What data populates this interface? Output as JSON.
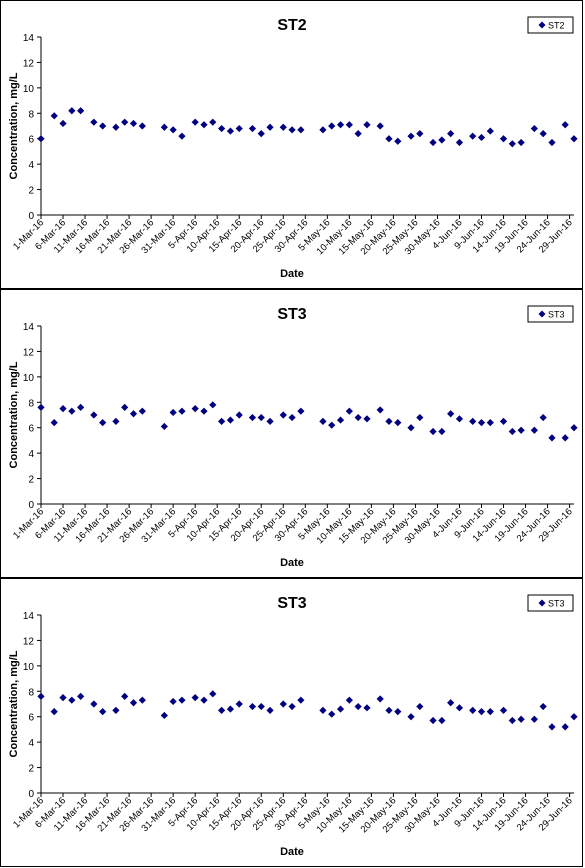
{
  "chart_data": [
    {
      "type": "scatter",
      "title": "ST2",
      "xlabel": "Date",
      "ylabel": "Concentration, mg/L",
      "ylim": [
        0,
        14
      ],
      "yticks": [
        "0",
        "2",
        "4",
        "6",
        "8",
        "10",
        "12",
        "14"
      ],
      "xlim": [
        "2016-03-01",
        "2016-06-30"
      ],
      "xticks": [
        "1-Mar-16",
        "6-Mar-16",
        "11-Mar-16",
        "16-Mar-16",
        "21-Mar-16",
        "26-Mar-16",
        "31-Mar-16",
        "5-Apr-16",
        "10-Apr-16",
        "15-Apr-16",
        "20-Apr-16",
        "25-Apr-16",
        "30-Apr-16",
        "5-May-16",
        "10-May-16",
        "15-May-16",
        "20-May-16",
        "25-May-16",
        "30-May-16",
        "4-Jun-16",
        "9-Jun-16",
        "14-Jun-16",
        "19-Jun-16",
        "24-Jun-16",
        "29-Jun-16"
      ],
      "grid": false,
      "legend_position": "top-right",
      "marker_color": "#000080",
      "series": [
        {
          "name": "ST2",
          "points": [
            [
              "2016-03-01",
              6.0
            ],
            [
              "2016-03-04",
              7.8
            ],
            [
              "2016-03-06",
              7.2
            ],
            [
              "2016-03-08",
              8.2
            ],
            [
              "2016-03-10",
              8.2
            ],
            [
              "2016-03-13",
              7.3
            ],
            [
              "2016-03-15",
              7.0
            ],
            [
              "2016-03-18",
              6.9
            ],
            [
              "2016-03-20",
              7.3
            ],
            [
              "2016-03-22",
              7.2
            ],
            [
              "2016-03-24",
              7.0
            ],
            [
              "2016-03-29",
              6.9
            ],
            [
              "2016-03-31",
              6.7
            ],
            [
              "2016-04-02",
              6.2
            ],
            [
              "2016-04-05",
              7.3
            ],
            [
              "2016-04-07",
              7.1
            ],
            [
              "2016-04-09",
              7.3
            ],
            [
              "2016-04-11",
              6.8
            ],
            [
              "2016-04-13",
              6.6
            ],
            [
              "2016-04-15",
              6.8
            ],
            [
              "2016-04-18",
              6.8
            ],
            [
              "2016-04-20",
              6.4
            ],
            [
              "2016-04-22",
              6.9
            ],
            [
              "2016-04-25",
              6.9
            ],
            [
              "2016-04-27",
              6.7
            ],
            [
              "2016-04-29",
              6.7
            ],
            [
              "2016-05-04",
              6.7
            ],
            [
              "2016-05-06",
              7.0
            ],
            [
              "2016-05-08",
              7.1
            ],
            [
              "2016-05-10",
              7.1
            ],
            [
              "2016-05-12",
              6.4
            ],
            [
              "2016-05-14",
              7.1
            ],
            [
              "2016-05-17",
              7.0
            ],
            [
              "2016-05-19",
              6.0
            ],
            [
              "2016-05-21",
              5.8
            ],
            [
              "2016-05-24",
              6.2
            ],
            [
              "2016-05-26",
              6.4
            ],
            [
              "2016-05-29",
              5.7
            ],
            [
              "2016-05-31",
              5.9
            ],
            [
              "2016-06-02",
              6.4
            ],
            [
              "2016-06-04",
              5.7
            ],
            [
              "2016-06-07",
              6.2
            ],
            [
              "2016-06-09",
              6.1
            ],
            [
              "2016-06-11",
              6.6
            ],
            [
              "2016-06-14",
              6.0
            ],
            [
              "2016-06-16",
              5.6
            ],
            [
              "2016-06-18",
              5.7
            ],
            [
              "2016-06-21",
              6.8
            ],
            [
              "2016-06-23",
              6.4
            ],
            [
              "2016-06-25",
              5.7
            ],
            [
              "2016-06-28",
              7.1
            ],
            [
              "2016-06-30",
              6.0
            ]
          ]
        }
      ]
    },
    {
      "type": "scatter",
      "title": "ST3",
      "xlabel": "Date",
      "ylabel": "Concentration, mg/L",
      "ylim": [
        0,
        14
      ],
      "yticks": [
        "0",
        "2",
        "4",
        "6",
        "8",
        "10",
        "12",
        "14"
      ],
      "xlim": [
        "2016-03-01",
        "2016-06-30"
      ],
      "xticks": [
        "1-Mar-16",
        "6-Mar-16",
        "11-Mar-16",
        "16-Mar-16",
        "21-Mar-16",
        "26-Mar-16",
        "31-Mar-16",
        "5-Apr-16",
        "10-Apr-16",
        "15-Apr-16",
        "20-Apr-16",
        "25-Apr-16",
        "30-Apr-16",
        "5-May-16",
        "10-May-16",
        "15-May-16",
        "20-May-16",
        "25-May-16",
        "30-May-16",
        "4-Jun-16",
        "9-Jun-16",
        "14-Jun-16",
        "19-Jun-16",
        "24-Jun-16",
        "29-Jun-16"
      ],
      "grid": false,
      "legend_position": "top-right",
      "marker_color": "#000080",
      "series": [
        {
          "name": "ST3",
          "points": [
            [
              "2016-03-01",
              7.6
            ],
            [
              "2016-03-04",
              6.4
            ],
            [
              "2016-03-06",
              7.5
            ],
            [
              "2016-03-08",
              7.3
            ],
            [
              "2016-03-10",
              7.6
            ],
            [
              "2016-03-13",
              7.0
            ],
            [
              "2016-03-15",
              6.4
            ],
            [
              "2016-03-18",
              6.5
            ],
            [
              "2016-03-20",
              7.6
            ],
            [
              "2016-03-22",
              7.1
            ],
            [
              "2016-03-24",
              7.3
            ],
            [
              "2016-03-29",
              6.1
            ],
            [
              "2016-03-31",
              7.2
            ],
            [
              "2016-04-02",
              7.3
            ],
            [
              "2016-04-05",
              7.5
            ],
            [
              "2016-04-07",
              7.3
            ],
            [
              "2016-04-09",
              7.8
            ],
            [
              "2016-04-11",
              6.5
            ],
            [
              "2016-04-13",
              6.6
            ],
            [
              "2016-04-15",
              7.0
            ],
            [
              "2016-04-18",
              6.8
            ],
            [
              "2016-04-20",
              6.8
            ],
            [
              "2016-04-22",
              6.5
            ],
            [
              "2016-04-25",
              7.0
            ],
            [
              "2016-04-27",
              6.8
            ],
            [
              "2016-04-29",
              7.3
            ],
            [
              "2016-05-04",
              6.5
            ],
            [
              "2016-05-06",
              6.2
            ],
            [
              "2016-05-08",
              6.6
            ],
            [
              "2016-05-10",
              7.3
            ],
            [
              "2016-05-12",
              6.8
            ],
            [
              "2016-05-14",
              6.7
            ],
            [
              "2016-05-17",
              7.4
            ],
            [
              "2016-05-19",
              6.5
            ],
            [
              "2016-05-21",
              6.4
            ],
            [
              "2016-05-24",
              6.0
            ],
            [
              "2016-05-26",
              6.8
            ],
            [
              "2016-05-29",
              5.7
            ],
            [
              "2016-05-31",
              5.7
            ],
            [
              "2016-06-02",
              7.1
            ],
            [
              "2016-06-04",
              6.7
            ],
            [
              "2016-06-07",
              6.5
            ],
            [
              "2016-06-09",
              6.4
            ],
            [
              "2016-06-11",
              6.4
            ],
            [
              "2016-06-14",
              6.5
            ],
            [
              "2016-06-16",
              5.7
            ],
            [
              "2016-06-18",
              5.8
            ],
            [
              "2016-06-21",
              5.8
            ],
            [
              "2016-06-23",
              6.8
            ],
            [
              "2016-06-25",
              5.2
            ],
            [
              "2016-06-28",
              5.2
            ],
            [
              "2016-06-30",
              6.0
            ]
          ]
        }
      ]
    },
    {
      "type": "scatter",
      "title": "ST3",
      "xlabel": "Date",
      "ylabel": "Concentration, mg/L",
      "ylim": [
        0,
        14
      ],
      "yticks": [
        "0",
        "2",
        "4",
        "6",
        "8",
        "10",
        "12",
        "14"
      ],
      "xlim": [
        "2016-03-01",
        "2016-06-30"
      ],
      "xticks": [
        "1-Mar-16",
        "6-Mar-16",
        "11-Mar-16",
        "16-Mar-16",
        "21-Mar-16",
        "26-Mar-16",
        "31-Mar-16",
        "5-Apr-16",
        "10-Apr-16",
        "15-Apr-16",
        "20-Apr-16",
        "25-Apr-16",
        "30-Apr-16",
        "5-May-16",
        "10-May-16",
        "15-May-16",
        "20-May-16",
        "25-May-16",
        "30-May-16",
        "4-Jun-16",
        "9-Jun-16",
        "14-Jun-16",
        "19-Jun-16",
        "24-Jun-16",
        "29-Jun-16"
      ],
      "grid": false,
      "legend_position": "top-right",
      "marker_color": "#000080",
      "series": [
        {
          "name": "ST3",
          "points": [
            [
              "2016-03-01",
              7.6
            ],
            [
              "2016-03-04",
              6.4
            ],
            [
              "2016-03-06",
              7.5
            ],
            [
              "2016-03-08",
              7.3
            ],
            [
              "2016-03-10",
              7.6
            ],
            [
              "2016-03-13",
              7.0
            ],
            [
              "2016-03-15",
              6.4
            ],
            [
              "2016-03-18",
              6.5
            ],
            [
              "2016-03-20",
              7.6
            ],
            [
              "2016-03-22",
              7.1
            ],
            [
              "2016-03-24",
              7.3
            ],
            [
              "2016-03-29",
              6.1
            ],
            [
              "2016-03-31",
              7.2
            ],
            [
              "2016-04-02",
              7.3
            ],
            [
              "2016-04-05",
              7.5
            ],
            [
              "2016-04-07",
              7.3
            ],
            [
              "2016-04-09",
              7.8
            ],
            [
              "2016-04-11",
              6.5
            ],
            [
              "2016-04-13",
              6.6
            ],
            [
              "2016-04-15",
              7.0
            ],
            [
              "2016-04-18",
              6.8
            ],
            [
              "2016-04-20",
              6.8
            ],
            [
              "2016-04-22",
              6.5
            ],
            [
              "2016-04-25",
              7.0
            ],
            [
              "2016-04-27",
              6.8
            ],
            [
              "2016-04-29",
              7.3
            ],
            [
              "2016-05-04",
              6.5
            ],
            [
              "2016-05-06",
              6.2
            ],
            [
              "2016-05-08",
              6.6
            ],
            [
              "2016-05-10",
              7.3
            ],
            [
              "2016-05-12",
              6.8
            ],
            [
              "2016-05-14",
              6.7
            ],
            [
              "2016-05-17",
              7.4
            ],
            [
              "2016-05-19",
              6.5
            ],
            [
              "2016-05-21",
              6.4
            ],
            [
              "2016-05-24",
              6.0
            ],
            [
              "2016-05-26",
              6.8
            ],
            [
              "2016-05-29",
              5.7
            ],
            [
              "2016-05-31",
              5.7
            ],
            [
              "2016-06-02",
              7.1
            ],
            [
              "2016-06-04",
              6.7
            ],
            [
              "2016-06-07",
              6.5
            ],
            [
              "2016-06-09",
              6.4
            ],
            [
              "2016-06-11",
              6.4
            ],
            [
              "2016-06-14",
              6.5
            ],
            [
              "2016-06-16",
              5.7
            ],
            [
              "2016-06-18",
              5.8
            ],
            [
              "2016-06-21",
              5.8
            ],
            [
              "2016-06-23",
              6.8
            ],
            [
              "2016-06-25",
              5.2
            ],
            [
              "2016-06-28",
              5.2
            ],
            [
              "2016-06-30",
              6.0
            ]
          ]
        }
      ]
    }
  ]
}
